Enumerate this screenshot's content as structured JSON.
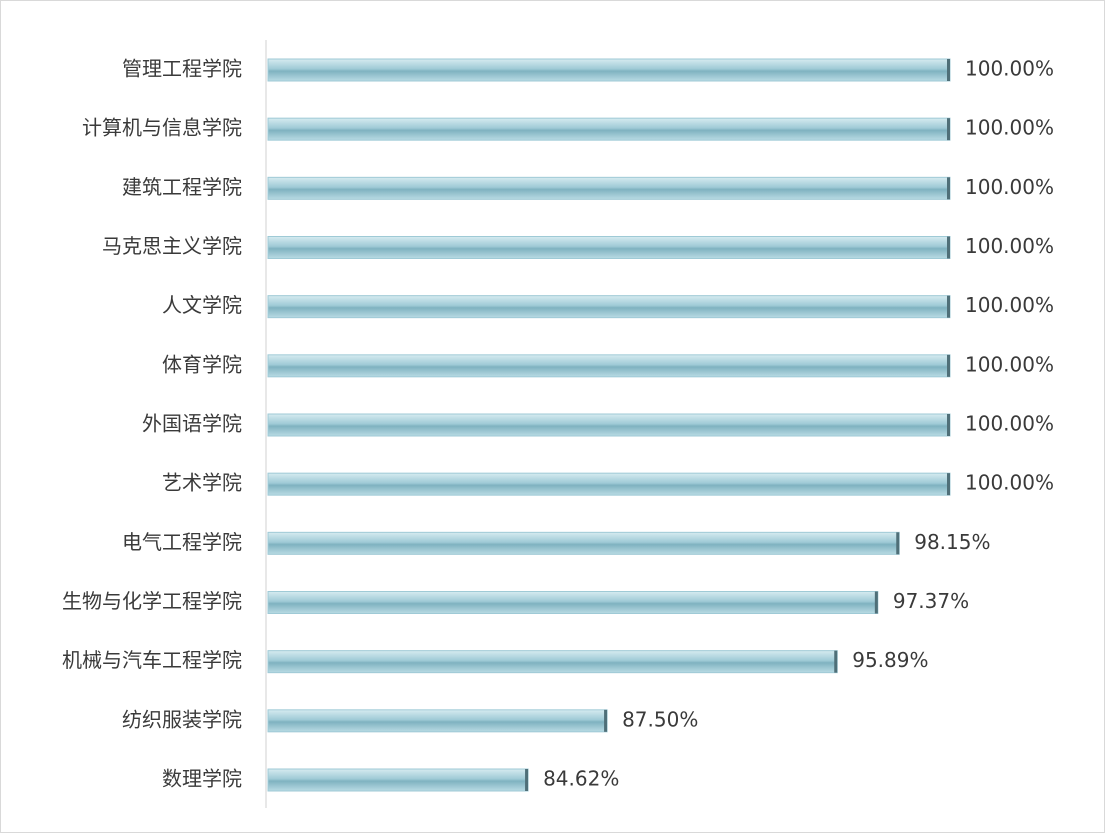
{
  "chart_data": {
    "type": "barh",
    "categories": [
      "管理工程学院",
      "计算机与信息学院",
      "建筑工程学院",
      "马克思主义学院",
      "人文学院",
      "体育学院",
      "外国语学院",
      "艺术学院",
      "电气工程学院",
      "生物与化学工程学院",
      "机械与汽车工程学院",
      "纺织服装学院",
      "数理学院"
    ],
    "values": [
      100,
      100,
      100,
      100,
      100,
      100,
      100,
      100,
      98.15,
      97.37,
      95.89,
      87.5,
      84.62
    ],
    "value_labels": [
      "100.00%",
      "100.00%",
      "100.00%",
      "100.00%",
      "100.00%",
      "100.00%",
      "100.00%",
      "100.00%",
      "98.15%",
      "97.37%",
      "95.89%",
      "87.50%",
      "84.62%"
    ],
    "color": "#9fcad6",
    "xlim": [
      75.14,
      100
    ]
  }
}
